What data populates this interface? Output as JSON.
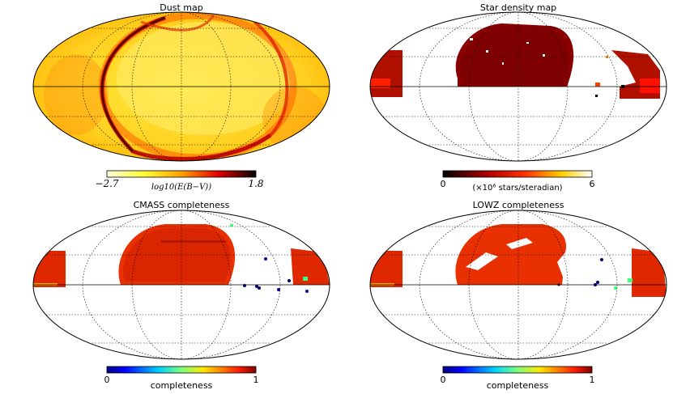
{
  "chart_data": [
    {
      "type": "heatmap",
      "title": "Dust map",
      "projection": "mollweide",
      "colormap": "hot (reversed)",
      "colorbar": {
        "min_label": "−2.7",
        "max_label": "1.8",
        "label": "log10(E(B−V))",
        "min": -2.7,
        "max": 1.8
      }
    },
    {
      "type": "heatmap",
      "title": "Star density map",
      "projection": "mollweide",
      "colormap": "hot",
      "colorbar": {
        "min_label": "0",
        "max_label": "6",
        "label": "(×10⁶ stars/steradian)",
        "min": 0,
        "max": 6
      }
    },
    {
      "type": "heatmap",
      "title": "CMASS completeness",
      "projection": "mollweide",
      "colormap": "jet",
      "colorbar": {
        "min_label": "0",
        "max_label": "1",
        "label": "completeness",
        "min": 0,
        "max": 1
      }
    },
    {
      "type": "heatmap",
      "title": "LOWZ completeness",
      "projection": "mollweide",
      "colormap": "jet",
      "colorbar": {
        "min_label": "0",
        "max_label": "1",
        "label": "completeness",
        "min": 0,
        "max": 1
      }
    }
  ]
}
